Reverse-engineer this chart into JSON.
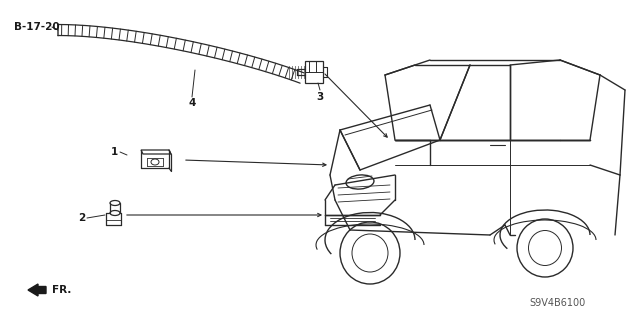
{
  "bg_color": "#ffffff",
  "line_color": "#2a2a2a",
  "text_color": "#1a1a1a",
  "labels": {
    "ref_label": "B-17-20",
    "part1_label": "1",
    "part2_label": "2",
    "part3_label": "3",
    "part4_label": "4",
    "part_num": "S9V4B6100"
  },
  "figsize": [
    6.4,
    3.19
  ],
  "dpi": 100
}
